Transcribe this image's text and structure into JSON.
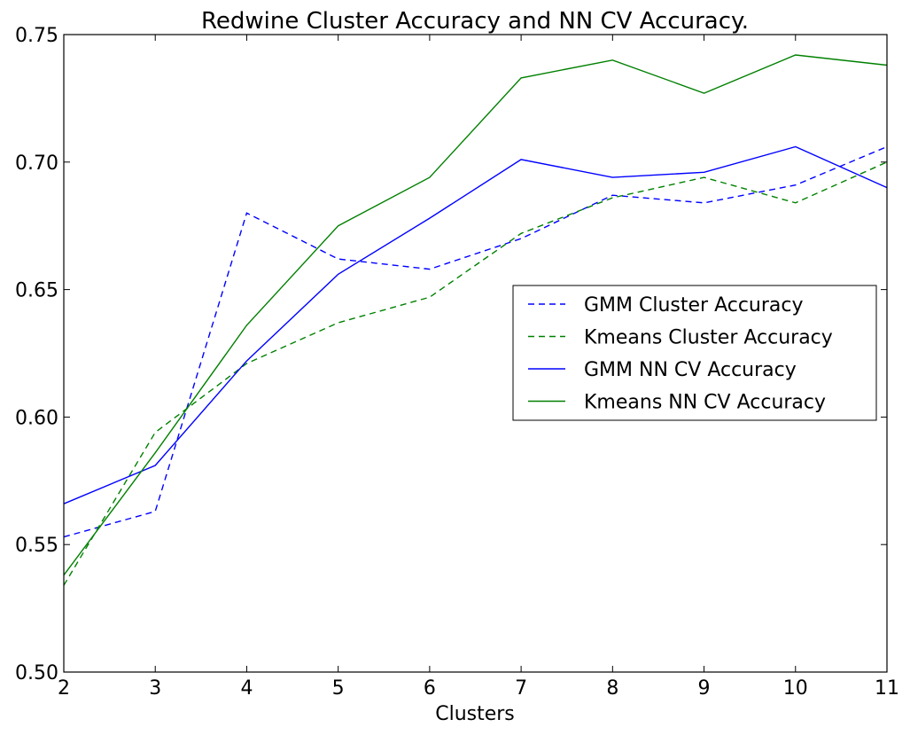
{
  "chart_data": {
    "type": "line",
    "title": "Redwine Cluster Accuracy and NN CV Accuracy.",
    "xlabel": "Clusters",
    "ylabel": "",
    "xlim": [
      2,
      11
    ],
    "ylim": [
      0.5,
      0.75
    ],
    "x": [
      2,
      3,
      4,
      5,
      6,
      7,
      8,
      9,
      10,
      11
    ],
    "xticks": [
      "2",
      "3",
      "4",
      "5",
      "6",
      "7",
      "8",
      "9",
      "10",
      "11"
    ],
    "yticks": [
      "0.50",
      "0.55",
      "0.60",
      "0.65",
      "0.70",
      "0.75"
    ],
    "ytick_values": [
      0.5,
      0.55,
      0.6,
      0.65,
      0.7,
      0.75
    ],
    "grid": false,
    "legend_position": "center-right",
    "series": [
      {
        "name": "GMM Cluster Accuracy",
        "color": "#0000ff",
        "style": "dashed",
        "values": [
          0.553,
          0.563,
          0.68,
          0.662,
          0.658,
          0.67,
          0.687,
          0.684,
          0.691,
          0.706
        ]
      },
      {
        "name": "Kmeans Cluster Accuracy",
        "color": "#008000",
        "style": "dashed",
        "values": [
          0.534,
          0.594,
          0.621,
          0.637,
          0.647,
          0.672,
          0.686,
          0.694,
          0.684,
          0.7
        ]
      },
      {
        "name": "GMM NN CV Accuracy",
        "color": "#0000ff",
        "style": "solid",
        "values": [
          0.566,
          0.581,
          0.622,
          0.656,
          0.678,
          0.701,
          0.694,
          0.696,
          0.706,
          0.69
        ]
      },
      {
        "name": "Kmeans NN CV Accuracy",
        "color": "#008000",
        "style": "solid",
        "values": [
          0.538,
          0.586,
          0.636,
          0.675,
          0.694,
          0.733,
          0.74,
          0.727,
          0.742,
          0.738
        ]
      }
    ]
  }
}
